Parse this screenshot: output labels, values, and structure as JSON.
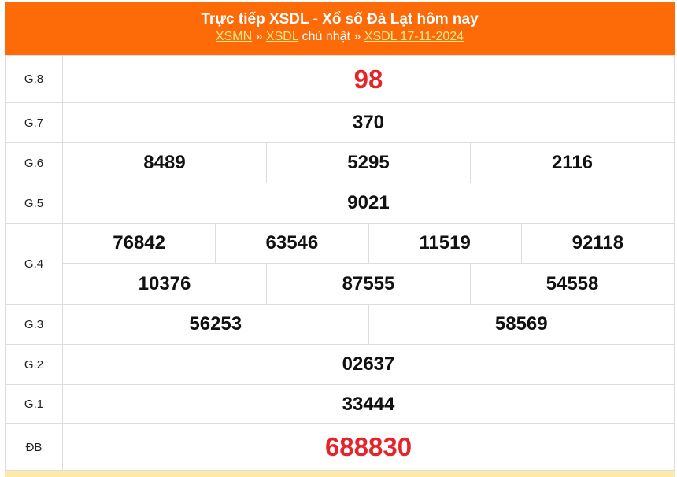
{
  "header": {
    "title": "Trực tiếp XSDL - Xổ số Đà Lạt hôm nay",
    "breadcrumb": {
      "link1": "XSMN",
      "sep1": " » ",
      "link2": "XSDL",
      "text": " chủ nhật » ",
      "link3": "XSDL 17-11-2024"
    }
  },
  "colors": {
    "header": "#fd6a08",
    "highlight": "#e5242a"
  },
  "rows": [
    {
      "label": "G.8",
      "values": [
        "98"
      ]
    },
    {
      "label": "G.7",
      "values": [
        "370"
      ]
    },
    {
      "label": "G.6",
      "values": [
        "8489",
        "5295",
        "2116"
      ]
    },
    {
      "label": "G.5",
      "values": [
        "9021"
      ]
    },
    {
      "label": "G.4",
      "values": [
        "76842",
        "63546",
        "11519",
        "92118",
        "10376",
        "87555",
        "54558"
      ]
    },
    {
      "label": "G.3",
      "values": [
        "56253",
        "58569"
      ]
    },
    {
      "label": "G.2",
      "values": [
        "02637"
      ]
    },
    {
      "label": "G.1",
      "values": [
        "33444"
      ]
    },
    {
      "label": "ĐB",
      "values": [
        "688830"
      ]
    }
  ]
}
